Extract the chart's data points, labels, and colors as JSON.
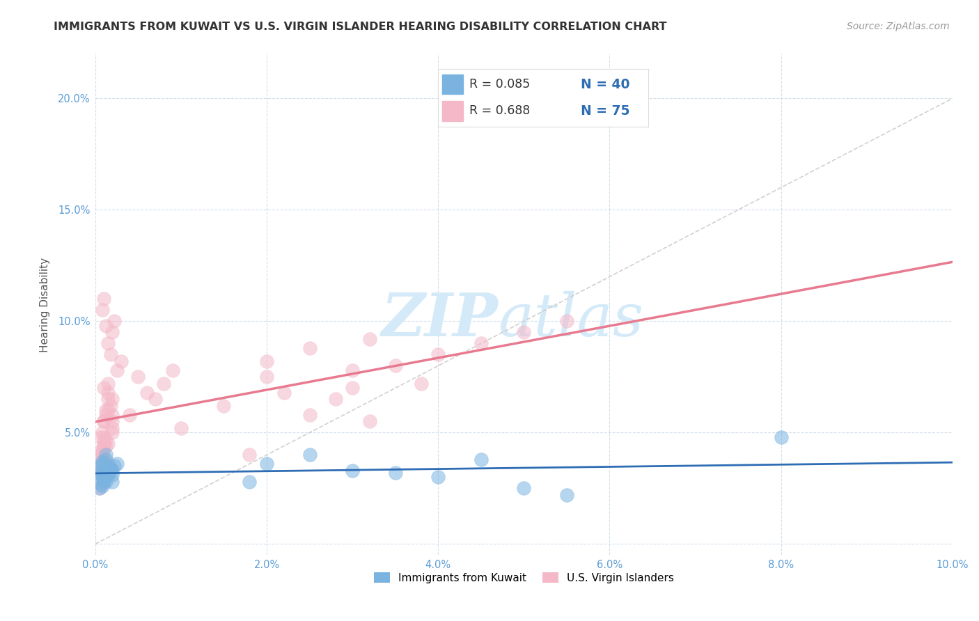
{
  "title": "IMMIGRANTS FROM KUWAIT VS U.S. VIRGIN ISLANDER HEARING DISABILITY CORRELATION CHART",
  "source": "Source: ZipAtlas.com",
  "ylabel": "Hearing Disability",
  "xlim": [
    0.0,
    0.1
  ],
  "ylim": [
    -0.005,
    0.22
  ],
  "xticks": [
    0.0,
    0.02,
    0.04,
    0.06,
    0.08,
    0.1
  ],
  "yticks": [
    0.0,
    0.05,
    0.1,
    0.15,
    0.2
  ],
  "xtick_labels": [
    "0.0%",
    "2.0%",
    "4.0%",
    "6.0%",
    "8.0%",
    "10.0%"
  ],
  "ytick_labels": [
    "",
    "5.0%",
    "10.0%",
    "15.0%",
    "20.0%"
  ],
  "color_blue": "#7ab3e0",
  "color_pink": "#f4b8c8",
  "color_trendline_blue": "#2e6db4",
  "color_trendline_pink": "#e87a90",
  "color_diagonal": "#c8c8c8",
  "watermark_zip": "ZIP",
  "watermark_atlas": "atlas",
  "watermark_color": "#d5eaf8",
  "background_color": "#ffffff",
  "grid_color": "#c8d8e8",
  "title_color": "#333333",
  "source_color": "#999999",
  "tick_color": "#5b9bd5",
  "ylabel_color": "#555555",
  "legend_r_color": "#333333",
  "legend_n_color": "#2e6db4",
  "blue_scatter": [
    [
      0.0005,
      0.032
    ],
    [
      0.0008,
      0.03
    ],
    [
      0.001,
      0.028
    ],
    [
      0.0012,
      0.033
    ],
    [
      0.0006,
      0.027
    ],
    [
      0.0015,
      0.035
    ],
    [
      0.002,
      0.031
    ],
    [
      0.0008,
      0.036
    ],
    [
      0.001,
      0.029
    ],
    [
      0.0018,
      0.034
    ],
    [
      0.0005,
      0.025
    ],
    [
      0.0012,
      0.038
    ],
    [
      0.0007,
      0.032
    ],
    [
      0.001,
      0.03
    ],
    [
      0.0015,
      0.033
    ],
    [
      0.002,
      0.028
    ],
    [
      0.0008,
      0.026
    ],
    [
      0.0012,
      0.04
    ],
    [
      0.0006,
      0.035
    ],
    [
      0.001,
      0.032
    ],
    [
      0.0025,
      0.036
    ],
    [
      0.0015,
      0.031
    ],
    [
      0.001,
      0.029
    ],
    [
      0.002,
      0.033
    ],
    [
      0.0008,
      0.037
    ],
    [
      0.0012,
      0.028
    ],
    [
      0.0018,
      0.034
    ],
    [
      0.001,
      0.03
    ],
    [
      0.0015,
      0.032
    ],
    [
      0.0022,
      0.035
    ],
    [
      0.02,
      0.036
    ],
    [
      0.025,
      0.04
    ],
    [
      0.018,
      0.028
    ],
    [
      0.03,
      0.033
    ],
    [
      0.035,
      0.032
    ],
    [
      0.04,
      0.03
    ],
    [
      0.045,
      0.038
    ],
    [
      0.05,
      0.025
    ],
    [
      0.055,
      0.022
    ],
    [
      0.08,
      0.048
    ]
  ],
  "pink_scatter": [
    [
      0.0005,
      0.038
    ],
    [
      0.0008,
      0.042
    ],
    [
      0.001,
      0.055
    ],
    [
      0.0006,
      0.048
    ],
    [
      0.0012,
      0.035
    ],
    [
      0.0008,
      0.032
    ],
    [
      0.0015,
      0.06
    ],
    [
      0.001,
      0.045
    ],
    [
      0.002,
      0.052
    ],
    [
      0.0008,
      0.04
    ],
    [
      0.0012,
      0.058
    ],
    [
      0.0006,
      0.033
    ],
    [
      0.001,
      0.044
    ],
    [
      0.0015,
      0.065
    ],
    [
      0.002,
      0.05
    ],
    [
      0.0008,
      0.038
    ],
    [
      0.0005,
      0.028
    ],
    [
      0.0012,
      0.047
    ],
    [
      0.0018,
      0.062
    ],
    [
      0.001,
      0.055
    ],
    [
      0.0006,
      0.042
    ],
    [
      0.0015,
      0.068
    ],
    [
      0.001,
      0.035
    ],
    [
      0.002,
      0.058
    ],
    [
      0.0008,
      0.05
    ],
    [
      0.0012,
      0.044
    ],
    [
      0.0015,
      0.072
    ],
    [
      0.001,
      0.038
    ],
    [
      0.0008,
      0.03
    ],
    [
      0.002,
      0.065
    ],
    [
      0.0005,
      0.025
    ],
    [
      0.0008,
      0.032
    ],
    [
      0.001,
      0.048
    ],
    [
      0.0015,
      0.036
    ],
    [
      0.002,
      0.055
    ],
    [
      0.0008,
      0.041
    ],
    [
      0.0012,
      0.06
    ],
    [
      0.0006,
      0.034
    ],
    [
      0.001,
      0.07
    ],
    [
      0.0015,
      0.045
    ],
    [
      0.015,
      0.062
    ],
    [
      0.02,
      0.075
    ],
    [
      0.025,
      0.058
    ],
    [
      0.018,
      0.04
    ],
    [
      0.022,
      0.068
    ],
    [
      0.03,
      0.07
    ],
    [
      0.035,
      0.08
    ],
    [
      0.01,
      0.052
    ],
    [
      0.028,
      0.065
    ],
    [
      0.032,
      0.055
    ],
    [
      0.002,
      0.095
    ],
    [
      0.0018,
      0.085
    ],
    [
      0.0025,
      0.078
    ],
    [
      0.003,
      0.082
    ],
    [
      0.0015,
      0.09
    ],
    [
      0.0022,
      0.1
    ],
    [
      0.04,
      0.085
    ],
    [
      0.045,
      0.09
    ],
    [
      0.038,
      0.072
    ],
    [
      0.05,
      0.095
    ],
    [
      0.055,
      0.1
    ],
    [
      0.03,
      0.078
    ],
    [
      0.001,
      0.11
    ],
    [
      0.0008,
      0.105
    ],
    [
      0.0012,
      0.098
    ],
    [
      0.025,
      0.088
    ],
    [
      0.02,
      0.082
    ],
    [
      0.032,
      0.092
    ],
    [
      0.005,
      0.075
    ],
    [
      0.006,
      0.068
    ],
    [
      0.008,
      0.072
    ],
    [
      0.004,
      0.058
    ],
    [
      0.007,
      0.065
    ],
    [
      0.009,
      0.078
    ]
  ],
  "title_fontsize": 11.5,
  "tick_fontsize": 10.5,
  "source_fontsize": 10,
  "ylabel_fontsize": 11,
  "legend_fontsize": 12.5,
  "legend_n_fontsize": 13.5
}
